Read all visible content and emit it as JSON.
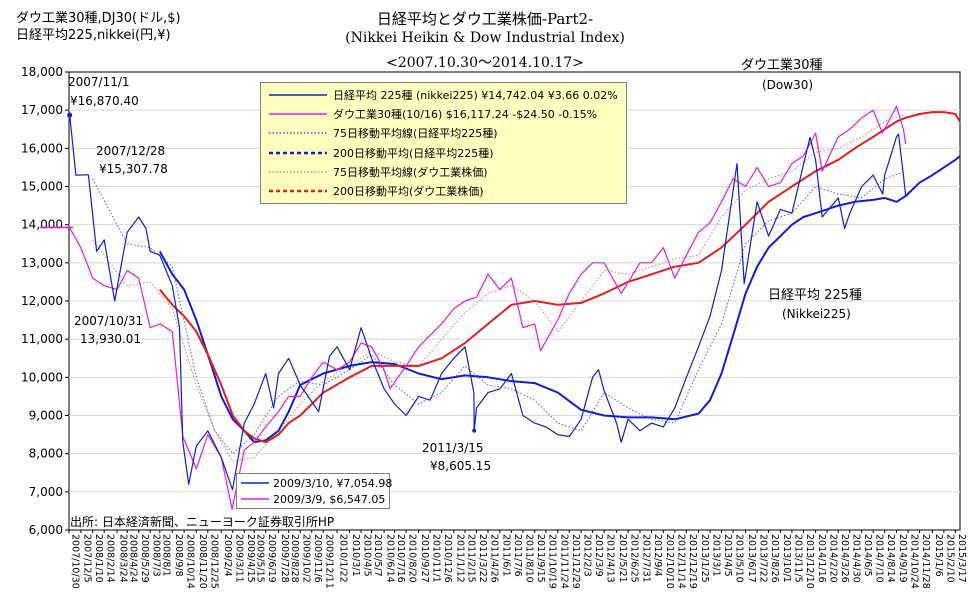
{
  "titles": {
    "line1": "日経平均とダウ工業株価-Part2-",
    "line2": "(Nikkei Heikin & Dow Industrial Index)",
    "line3": "<2007.10.30～2014.10.17>"
  },
  "units": {
    "line1": "ダウ工業30種,DJ30(ドル,$)",
    "line2": "日経平均225,nikkei(円,¥)"
  },
  "source": "出所: 日本経済新聞、ニューヨーク証券取引所HP",
  "annotations": {
    "nk_high_date": "2007/11/1",
    "nk_high_val": "¥16,870.40",
    "nk_dec_date": "2007/12/28",
    "nk_dec_val": "¥15,307.78",
    "dow_start_date": "2007/10/31",
    "dow_start_val": "13,930.01",
    "quake_date": "2011/3/15",
    "quake_val": "¥8,605.15",
    "dow_label": "ダウ工業30種",
    "dow_label_en": "(Dow30)",
    "nk_label": "日経平均 225種",
    "nk_label_en": "(Nikkei225)"
  },
  "chart_data": {
    "type": "line",
    "ylim": [
      6000,
      18000
    ],
    "yticks": [
      6000,
      7000,
      8000,
      9000,
      10000,
      11000,
      12000,
      13000,
      14000,
      15000,
      16000,
      17000,
      18000
    ],
    "ytick_labels": [
      "6,000",
      "7,000",
      "8,000",
      "9,000",
      "10,000",
      "11,000",
      "12,000",
      "13,000",
      "14,000",
      "15,000",
      "16,000",
      "17,000",
      "18,000"
    ],
    "x_range": [
      "2007/10/30",
      "2015/3/31"
    ],
    "xtick_labels": [
      "2007/10/30",
      "2007/12/5",
      "2008/1/10",
      "2008/2/14",
      "2008/3/24",
      "2008/4/24",
      "2008/5/29",
      "2008/7/3",
      "2008/8/1",
      "2008/9/8",
      "2008/10/14",
      "2008/11/20",
      "2008/12/25",
      "2009/2/4",
      "2009/3/11",
      "2009/4/15",
      "2009/5/15",
      "2009/6/19",
      "2009/7/28",
      "2009/8/28",
      "2009/10/2",
      "2009/11/6",
      "2009/12/11",
      "2010/1/22",
      "2010/3/1",
      "2010/4/5",
      "2010/5/7",
      "2010/6/14",
      "2010/7/16",
      "2010/8/20",
      "2010/9/27",
      "2010/11/1",
      "2010/12/6",
      "2011/1/12",
      "2011/2/15",
      "2011/3/22",
      "2011/4/26",
      "2011/6/1",
      "2011/7/6",
      "2011/8/10",
      "2011/9/15",
      "2011/10/19",
      "2011/11/24",
      "2011/12/29",
      "2012/2/3",
      "2012/3/9",
      "2012/4/13",
      "2012/5/21",
      "2012/6/25",
      "2012/7/31",
      "2012/9/4",
      "2012/10/10",
      "2012/11/14",
      "2012/12/19",
      "2013/1/25",
      "2013/3/1",
      "2013/4/5",
      "2013/5/10",
      "2013/6/17",
      "2013/7/22",
      "2013/8/26",
      "2013/10/1",
      "2013/11/5",
      "2013/12/10",
      "2014/1/16",
      "2014/2/20",
      "2014/3/26",
      "2014/4/30",
      "2014/6/5",
      "2014/7/10",
      "2014/8/14",
      "2014/9/19",
      "2014/10/24",
      "2014/11/28",
      "2015/1/6",
      "2015/2/10",
      "2015/3/17"
    ],
    "legend_position": "top-left",
    "legend": [
      {
        "name": "日経平均 225種 (nikkei225) ¥14,742.04 ¥3.66 0.02%",
        "color": "#1020c8",
        "style": "solid"
      },
      {
        "name": "ダウ工業30種(10/16) $16,117.24 -$24.50 -0.15%",
        "color": "#e020d8",
        "style": "solid"
      },
      {
        "name": "75日移動平均線(日経平均225種)",
        "color": "#5060d8",
        "style": "dotted"
      },
      {
        "name": "200日移動平均(日経平均225種)",
        "color": "#1020c8",
        "style": "dashed"
      },
      {
        "name": "75日移動平均線(ダウ工業株価)",
        "color": "#d08090",
        "style": "dotted"
      },
      {
        "name": "200日移動平均(ダウ工業株価)",
        "color": "#e02020",
        "style": "dashed"
      }
    ],
    "lows_legend": [
      {
        "name": "2009/3/10, ¥7,054.98",
        "color": "#1020c8"
      },
      {
        "name": "2009/3/9, $6,547.05",
        "color": "#e020d8"
      }
    ],
    "series": [
      {
        "name": "日経平均 225種",
        "color": "#1020c8",
        "width": 1.2,
        "x": [
          "2007/10/30",
          "2007/11/1",
          "2007/11/20",
          "2007/12/28",
          "2008/1/22",
          "2008/2/14",
          "2008/3/17",
          "2008/4/24",
          "2008/5/29",
          "2008/6/20",
          "2008/7/3",
          "2008/8/1",
          "2008/9/8",
          "2008/9/30",
          "2008/10/10",
          "2008/10/28",
          "2008/11/20",
          "2008/12/25",
          "2009/2/4",
          "2009/3/10",
          "2009/4/15",
          "2009/5/15",
          "2009/6/19",
          "2009/7/13",
          "2009/7/28",
          "2009/8/28",
          "2009/10/2",
          "2009/11/27",
          "2009/12/30",
          "2010/1/22",
          "2010/3/1",
          "2010/4/5",
          "2010/5/7",
          "2010/6/14",
          "2010/7/16",
          "2010/8/20",
          "2010/9/27",
          "2010/11/1",
          "2010/12/6",
          "2011/1/12",
          "2011/2/15",
          "2011/3/14",
          "2011/3/15",
          "2011/3/22",
          "2011/4/26",
          "2011/6/1",
          "2011/7/6",
          "2011/8/10",
          "2011/9/15",
          "2011/10/19",
          "2011/11/24",
          "2011/12/29",
          "2012/2/3",
          "2012/3/9",
          "2012/3/27",
          "2012/4/13",
          "2012/5/21",
          "2012/6/4",
          "2012/6/25",
          "2012/7/31",
          "2012/9/4",
          "2012/10/10",
          "2012/11/14",
          "2012/12/19",
          "2013/1/25",
          "2013/3/1",
          "2013/4/5",
          "2013/5/22",
          "2013/6/13",
          "2013/7/22",
          "2013/8/26",
          "2013/10/1",
          "2013/11/5",
          "2013/12/30",
          "2014/1/16",
          "2014/2/5",
          "2014/3/26",
          "2014/4/14",
          "2014/4/30",
          "2014/6/5",
          "2014/7/10",
          "2014/8/8",
          "2014/8/14",
          "2014/9/19",
          "2014/9/25",
          "2014/10/10",
          "2014/10/17"
        ],
        "y": [
          16700,
          16870,
          15300,
          15307,
          13300,
          13600,
          12000,
          13800,
          14200,
          13900,
          13300,
          13200,
          12400,
          11300,
          8300,
          7200,
          8200,
          8600,
          7900,
          7055,
          8800,
          9300,
          10100,
          9200,
          10100,
          10500,
          9800,
          9100,
          10550,
          10800,
          10200,
          11300,
          10500,
          9700,
          9300,
          9000,
          9500,
          9400,
          10100,
          10500,
          10800,
          9600,
          8605,
          9200,
          9600,
          9700,
          10100,
          9000,
          8800,
          8700,
          8500,
          8450,
          8900,
          10000,
          10200,
          9650,
          8800,
          8300,
          8900,
          8600,
          8800,
          8700,
          9200,
          10000,
          10800,
          11600,
          12800,
          15600,
          12450,
          14600,
          13700,
          14400,
          14300,
          16290,
          15700,
          14200,
          14700,
          13900,
          14300,
          15000,
          15300,
          14800,
          15300,
          16300,
          16374,
          15300,
          14742
        ]
      },
      {
        "name": "ダウ工業30種",
        "color": "#e020d8",
        "width": 1.2,
        "x": [
          "2007/10/30",
          "2007/10/31",
          "2007/12/5",
          "2008/1/10",
          "2008/2/14",
          "2008/3/24",
          "2008/4/24",
          "2008/5/29",
          "2008/7/3",
          "2008/8/1",
          "2008/9/8",
          "2008/10/10",
          "2008/11/20",
          "2008/12/25",
          "2009/2/4",
          "2009/3/9",
          "2009/4/15",
          "2009/5/15",
          "2009/6/19",
          "2009/7/28",
          "2009/8/28",
          "2009/10/2",
          "2009/11/6",
          "2009/12/11",
          "2010/1/22",
          "2010/3/1",
          "2010/4/5",
          "2010/5/7",
          "2010/6/14",
          "2010/7/2",
          "2010/8/20",
          "2010/9/27",
          "2010/11/1",
          "2010/12/6",
          "2011/1/12",
          "2011/2/15",
          "2011/3/22",
          "2011/4/26",
          "2011/6/1",
          "2011/7/6",
          "2011/8/10",
          "2011/9/15",
          "2011/10/3",
          "2011/11/24",
          "2011/12/29",
          "2012/2/3",
          "2012/3/9",
          "2012/4/13",
          "2012/6/4",
          "2012/7/31",
          "2012/9/4",
          "2012/10/10",
          "2012/11/14",
          "2012/12/19",
          "2013/1/25",
          "2013/3/1",
          "2013/4/5",
          "2013/5/10",
          "2013/6/17",
          "2013/7/22",
          "2013/8/26",
          "2013/10/1",
          "2013/11/5",
          "2013/12/10",
          "2014/1/16",
          "2014/2/5",
          "2014/3/26",
          "2014/4/30",
          "2014/6/5",
          "2014/7/10",
          "2014/8/7",
          "2014/9/19",
          "2014/10/10",
          "2014/10/17"
        ],
        "y": [
          13900,
          13930,
          13400,
          12600,
          12400,
          12300,
          12800,
          12600,
          11300,
          11400,
          11200,
          8450,
          7600,
          8500,
          7900,
          6547,
          8100,
          8300,
          8700,
          9100,
          9500,
          9500,
          10000,
          10400,
          10200,
          10400,
          10900,
          10800,
          10200,
          9700,
          10300,
          10800,
          11100,
          11400,
          11800,
          12000,
          12100,
          12700,
          12300,
          12600,
          11300,
          11400,
          10700,
          11500,
          12200,
          12700,
          13000,
          13000,
          12200,
          13000,
          13000,
          13400,
          12600,
          13200,
          13800,
          14050,
          14600,
          15200,
          15000,
          15500,
          15000,
          15100,
          15600,
          15800,
          16400,
          15400,
          16300,
          16500,
          16800,
          17000,
          16400,
          17100,
          16500,
          16117
        ]
      },
      {
        "name": "75日移動平均線(日経平均225種)",
        "color": "#5060d8",
        "width": 1,
        "dash": "1.5 2",
        "x": [
          "2008/1/10",
          "2008/4/24",
          "2008/7/3",
          "2008/9/8",
          "2008/11/20",
          "2009/1/15",
          "2009/3/11",
          "2009/5/15",
          "2009/7/28",
          "2009/10/2",
          "2009/12/11",
          "2010/3/1",
          "2010/5/7",
          "2010/7/16",
          "2010/9/27",
          "2010/12/6",
          "2011/2/15",
          "2011/4/26",
          "2011/7/6",
          "2011/9/15",
          "2011/11/24",
          "2012/2/3",
          "2012/4/13",
          "2012/6/25",
          "2012/9/4",
          "2012/11/14",
          "2013/1/25",
          "2013/4/5",
          "2013/6/17",
          "2013/8/26",
          "2013/11/5",
          "2014/1/16",
          "2014/3/26",
          "2014/6/5",
          "2014/8/14",
          "2014/10/17"
        ],
        "y": [
          15200,
          13500,
          13400,
          12900,
          10000,
          8600,
          8000,
          8500,
          9500,
          9900,
          9800,
          10200,
          10600,
          9800,
          9300,
          9600,
          10300,
          9800,
          9700,
          9400,
          8800,
          8600,
          9600,
          9200,
          8900,
          8800,
          10200,
          11400,
          13500,
          14100,
          14300,
          15000,
          14800,
          14700,
          15200,
          15400
        ]
      },
      {
        "name": "200日移動平均(日経平均225種)",
        "color": "#1020c8",
        "width": 2,
        "x": [
          "2008/8/1",
          "2008/9/8",
          "2008/10/14",
          "2008/11/20",
          "2008/12/25",
          "2009/2/4",
          "2009/3/11",
          "2009/4/15",
          "2009/5/15",
          "2009/6/19",
          "2009/7/28",
          "2009/8/28",
          "2009/10/2",
          "2009/12/11",
          "2010/3/1",
          "2010/5/7",
          "2010/7/16",
          "2010/9/27",
          "2010/12/6",
          "2011/2/15",
          "2011/4/26",
          "2011/7/6",
          "2011/9/15",
          "2011/11/24",
          "2012/2/3",
          "2012/4/13",
          "2012/6/25",
          "2012/9/4",
          "2012/11/14",
          "2013/1/25",
          "2013/3/1",
          "2013/4/5",
          "2013/5/10",
          "2013/6/17",
          "2013/7/22",
          "2013/8/26",
          "2013/10/1",
          "2013/11/5",
          "2013/12/10",
          "2014/1/16",
          "2014/3/26",
          "2014/5/15",
          "2014/7/10",
          "2014/8/14",
          "2014/9/19",
          "2014/10/17",
          "2014/11/28",
          "2015/1/6",
          "2015/2/10",
          "2015/3/17",
          "2015/3/31"
        ],
        "y": [
          13300,
          12700,
          12300,
          11500,
          10600,
          9500,
          8900,
          8600,
          8300,
          8350,
          8600,
          9100,
          9800,
          10100,
          10300,
          10400,
          10350,
          10100,
          9950,
          10050,
          10000,
          9900,
          9850,
          9600,
          9150,
          9000,
          8950,
          8950,
          8900,
          9050,
          9400,
          10100,
          11100,
          12200,
          12900,
          13400,
          13700,
          14000,
          14200,
          14300,
          14500,
          14600,
          14650,
          14700,
          14600,
          14750,
          15100,
          15300,
          15500,
          15700,
          15800
        ]
      },
      {
        "name": "75日移動平均線(ダウ工業株価)",
        "color": "#d08090",
        "width": 1,
        "dash": "1.5 2",
        "x": [
          "2008/1/10",
          "2008/4/24",
          "2008/7/3",
          "2008/9/8",
          "2008/11/20",
          "2009/1/15",
          "2009/3/11",
          "2009/5/15",
          "2009/7/28",
          "2009/10/2",
          "2009/12/11",
          "2010/3/1",
          "2010/5/7",
          "2010/7/16",
          "2010/9/27",
          "2010/12/6",
          "2011/2/15",
          "2011/4/26",
          "2011/7/6",
          "2011/9/15",
          "2011/11/24",
          "2012/2/3",
          "2012/4/13",
          "2012/6/25",
          "2012/9/4",
          "2012/11/14",
          "2013/1/25",
          "2013/4/5",
          "2013/6/17",
          "2013/8/26",
          "2013/11/5",
          "2014/1/16",
          "2014/3/26",
          "2014/6/5",
          "2014/8/14",
          "2014/10/17"
        ],
        "y": [
          13600,
          12400,
          12500,
          11800,
          9800,
          8600,
          7800,
          7900,
          8600,
          9300,
          9900,
          10300,
          10700,
          10400,
          10300,
          11000,
          11700,
          12200,
          12400,
          12000,
          11200,
          12000,
          12800,
          12700,
          12900,
          13100,
          13200,
          14200,
          14900,
          15200,
          15400,
          15900,
          16000,
          16300,
          16700,
          16900
        ]
      },
      {
        "name": "200日移動平均(ダウ工業株価)",
        "color": "#e02020",
        "width": 2,
        "x": [
          "2008/8/1",
          "2008/9/8",
          "2008/10/14",
          "2008/11/20",
          "2008/12/25",
          "2009/2/4",
          "2009/3/11",
          "2009/4/15",
          "2009/5/15",
          "2009/6/19",
          "2009/7/28",
          "2009/8/28",
          "2009/10/2",
          "2009/12/11",
          "2010/3/1",
          "2010/5/7",
          "2010/7/16",
          "2010/9/27",
          "2010/12/6",
          "2011/2/15",
          "2011/4/26",
          "2011/7/6",
          "2011/9/15",
          "2011/11/24",
          "2012/2/3",
          "2012/4/13",
          "2012/6/25",
          "2012/9/4",
          "2012/11/14",
          "2013/1/25",
          "2013/4/5",
          "2013/6/17",
          "2013/8/26",
          "2013/11/5",
          "2014/1/16",
          "2014/3/26",
          "2014/5/15",
          "2014/7/10",
          "2014/8/14",
          "2014/9/19",
          "2014/10/17",
          "2014/11/28",
          "2015/1/6",
          "2015/2/10",
          "2015/3/17",
          "2015/3/31"
        ],
        "y": [
          12300,
          11900,
          11600,
          11200,
          10600,
          9800,
          9000,
          8600,
          8400,
          8300,
          8500,
          8800,
          9000,
          9600,
          10000,
          10300,
          10300,
          10300,
          10500,
          10900,
          11400,
          11900,
          12000,
          11900,
          11950,
          12200,
          12500,
          12700,
          12900,
          13000,
          13400,
          14000,
          14600,
          15000,
          15400,
          15700,
          16000,
          16300,
          16500,
          16700,
          16800,
          16900,
          16950,
          16950,
          16900,
          16700
        ]
      }
    ]
  }
}
